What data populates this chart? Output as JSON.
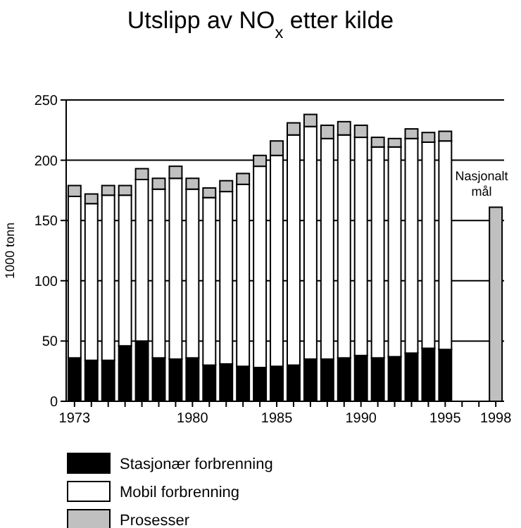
{
  "chart_data": {
    "type": "bar",
    "title": "Utslipp av NO$_{x}$ etter kilde",
    "ylabel": "1000 tonn",
    "stacked": true,
    "categories": [
      "1973",
      null,
      null,
      null,
      null,
      null,
      null,
      "1980",
      null,
      null,
      null,
      null,
      "1985",
      null,
      null,
      null,
      null,
      "1990",
      null,
      null,
      null,
      null,
      "1995",
      null,
      null,
      "1998"
    ],
    "series": [
      {
        "name": "Stasjonær forbrenning",
        "color": "#000000",
        "values": [
          36,
          34,
          34,
          46,
          50,
          36,
          35,
          36,
          30,
          31,
          29,
          28,
          29,
          30,
          35,
          35,
          36,
          38,
          36,
          37,
          40,
          44,
          43,
          null,
          null,
          null
        ]
      },
      {
        "name": "Mobil forbrenning",
        "color": "#ffffff",
        "values": [
          134,
          130,
          137,
          125,
          134,
          140,
          150,
          140,
          139,
          143,
          151,
          167,
          175,
          191,
          193,
          183,
          185,
          181,
          175,
          174,
          178,
          171,
          173,
          null,
          null,
          null
        ]
      },
      {
        "name": "Prosesser",
        "color": "#c0c0c0",
        "values": [
          9,
          8,
          8,
          8,
          9,
          9,
          10,
          9,
          8,
          9,
          9,
          9,
          12,
          10,
          10,
          11,
          11,
          10,
          8,
          7,
          8,
          8,
          8,
          null,
          null,
          null
        ]
      },
      {
        "color": "#c0c0c0",
        "values": [
          null,
          null,
          null,
          null,
          null,
          null,
          null,
          null,
          null,
          null,
          null,
          null,
          null,
          null,
          null,
          null,
          null,
          null,
          null,
          null,
          null,
          null,
          null,
          null,
          null,
          161
        ]
      }
    ],
    "ylim": [
      0,
      250
    ],
    "yticks": [
      0,
      50,
      100,
      150,
      200,
      250
    ],
    "grid": "y",
    "legend": "bottom",
    "annotations": [
      {
        "text": "Nasjonalt mål",
        "x": "1998",
        "y": 161
      }
    ]
  }
}
